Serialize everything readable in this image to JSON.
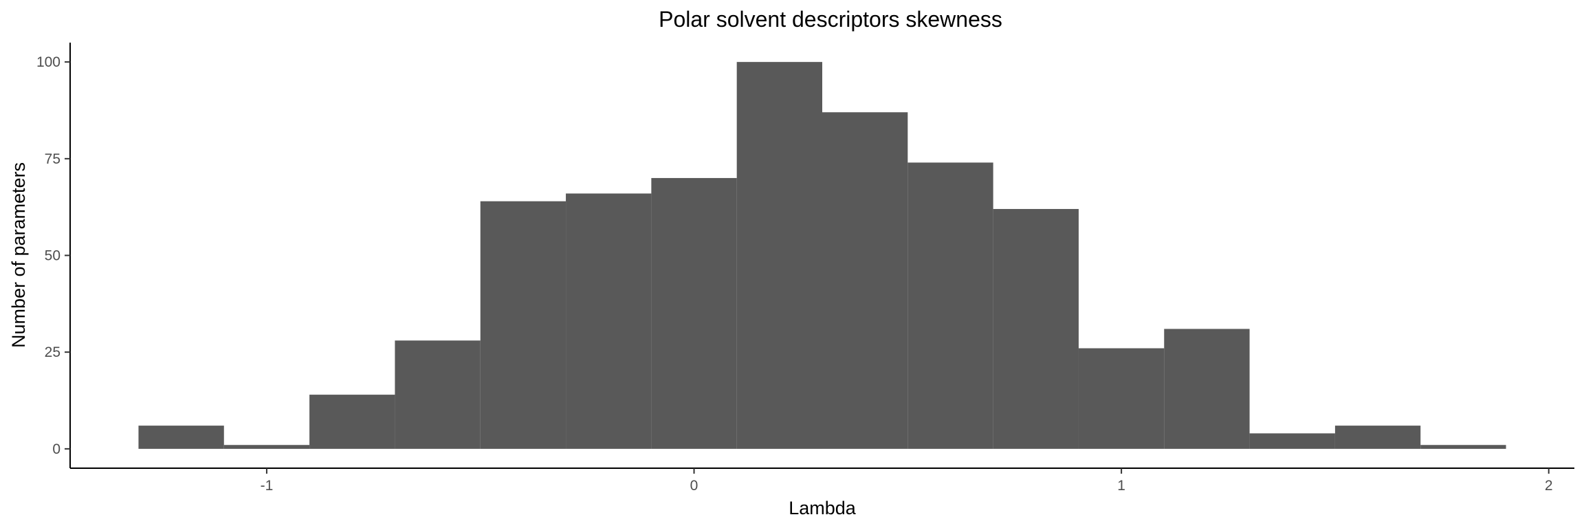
{
  "chart_data": {
    "type": "bar",
    "title": "Polar solvent descriptors skewness",
    "xlabel": "Lambda",
    "ylabel": "Number of parameters",
    "bin_width": 0.2,
    "bins": [
      {
        "x0": -1.3,
        "x1": -1.1,
        "count": 6
      },
      {
        "x0": -1.1,
        "x1": -0.9,
        "count": 1
      },
      {
        "x0": -0.9,
        "x1": -0.7,
        "count": 14
      },
      {
        "x0": -0.7,
        "x1": -0.5,
        "count": 28
      },
      {
        "x0": -0.5,
        "x1": -0.3,
        "count": 64
      },
      {
        "x0": -0.3,
        "x1": -0.1,
        "count": 66
      },
      {
        "x0": -0.1,
        "x1": 0.1,
        "count": 70
      },
      {
        "x0": 0.1,
        "x1": 0.3,
        "count": 100
      },
      {
        "x0": 0.3,
        "x1": 0.5,
        "count": 87
      },
      {
        "x0": 0.5,
        "x1": 0.7,
        "count": 74
      },
      {
        "x0": 0.7,
        "x1": 0.9,
        "count": 62
      },
      {
        "x0": 0.9,
        "x1": 1.1,
        "count": 26
      },
      {
        "x0": 1.1,
        "x1": 1.3,
        "count": 31
      },
      {
        "x0": 1.3,
        "x1": 1.5,
        "count": 4
      },
      {
        "x0": 1.5,
        "x1": 1.7,
        "count": 6
      },
      {
        "x0": 1.7,
        "x1": 1.9,
        "count": 1
      }
    ],
    "xlim": [
      -1.46,
      2.06
    ],
    "ylim": [
      -5,
      105
    ],
    "xticks": [
      -1,
      0,
      1,
      2
    ],
    "xtick_labels": [
      "-1",
      "0",
      "1",
      "2"
    ],
    "yticks": [
      0,
      25,
      50,
      75,
      100
    ],
    "ytick_labels": [
      "0",
      "25",
      "50",
      "75",
      "100"
    ],
    "grid": false,
    "legend": "none",
    "bar_color": "#595959",
    "background_color": "#ffffff"
  }
}
